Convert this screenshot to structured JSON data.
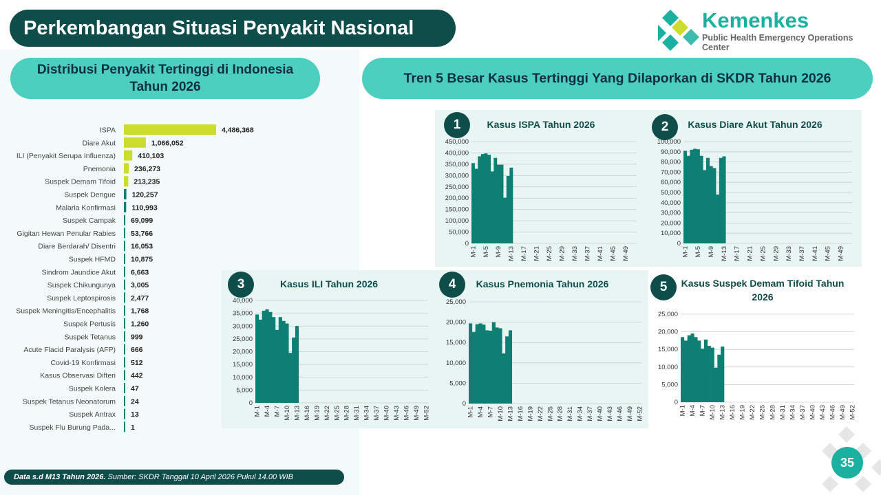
{
  "header": {
    "title": "Perkembangan Situasi Penyakit Nasional",
    "logo_name": "Kemenkes",
    "logo_subtitle": "Public Health Emergency Operations Center"
  },
  "left_section": {
    "title_line1": "Distribusi Penyakit Tertinggi di Indonesia",
    "title_line2": "Tahun 2026"
  },
  "right_section": {
    "title": "Tren 5 Besar Kasus Tertinggi Yang Dilaporkan di SKDR Tahun 2026"
  },
  "footer": {
    "bold_text": "Data s.d M13 Tahun 2026.",
    "text": " Sumber: SKDR Tanggal 10 April 2026 Pukul 14.00 WIB"
  },
  "page_number": "35",
  "colors": {
    "dark_teal": "#0f4d4a",
    "accent_teal": "#4ccfbf",
    "bar_lime": "#cbdc2e",
    "bar_teal": "#0e7f73"
  },
  "chart_data": [
    {
      "type": "bar",
      "orientation": "horizontal",
      "categories": [
        "ISPA",
        "Diare Akut",
        "ILI (Penyakit Serupa Influenza)",
        "Pnemonia",
        "Suspek Demam Tifoid",
        "Suspek Dengue",
        "Malaria Konfirmasi",
        "Suspek Campak",
        "Gigitan Hewan Penular Rabies",
        "Diare Berdarah/ Disentri",
        "Suspek HFMD",
        "Sindrom Jaundice Akut",
        "Suspek Chikungunya",
        "Suspek Leptospirosis",
        "Suspek Meningitis/Encephalitis",
        "Suspek Pertusis",
        "Suspek Tetanus",
        "Acute Flacid Paralysis (AFP)",
        "Covid-19 Konfirmasi",
        "Kasus Observasi Difteri",
        "Suspek Kolera",
        "Suspek Tetanus Neonatorum",
        "Suspek Antrax",
        "Suspek Flu Burung Pada..."
      ],
      "values": [
        4486368,
        1066052,
        410103,
        236273,
        213235,
        120257,
        110993,
        69099,
        53766,
        16053,
        10875,
        6663,
        3005,
        2477,
        1768,
        1260,
        999,
        666,
        512,
        442,
        47,
        24,
        13,
        1
      ],
      "value_labels": [
        "4,486,368",
        "1,066,052",
        "410,103",
        "236,273",
        "213,235",
        "120,257",
        "110,993",
        "69,099",
        "53,766",
        "16,053",
        "10,875",
        "6,663",
        "3,005",
        "2,477",
        "1,768",
        "1,260",
        "999",
        "666",
        "512",
        "442",
        "47",
        "24",
        "13",
        "1"
      ]
    },
    {
      "type": "bar",
      "number": "1",
      "title": "Kasus ISPA Tahun 2026",
      "ylim": [
        0,
        450000
      ],
      "yticks": [
        "0",
        "50,000",
        "100,000",
        "150,000",
        "200,000",
        "250,000",
        "300,000",
        "350,000",
        "400,000",
        "450,000"
      ],
      "xticks": [
        "M-1",
        "M-5",
        "M-9",
        "M-13",
        "M-17",
        "M-21",
        "M-25",
        "M-29",
        "M-33",
        "M-37",
        "M-41",
        "M-45",
        "M-49"
      ],
      "values": [
        355000,
        330000,
        385000,
        395000,
        398000,
        392000,
        318000,
        378000,
        348000,
        348000,
        202000,
        298000,
        335000
      ]
    },
    {
      "type": "bar",
      "number": "2",
      "title": "Kasus Diare Akut Tahun 2026",
      "ylim": [
        0,
        100000
      ],
      "yticks": [
        "0",
        "10,000",
        "20,000",
        "30,000",
        "40,000",
        "50,000",
        "60,000",
        "70,000",
        "80,000",
        "90,000",
        "100,000"
      ],
      "xticks": [
        "M-1",
        "M-5",
        "M-9",
        "M-13",
        "M-17",
        "M-21",
        "M-25",
        "M-29",
        "M-33",
        "M-37",
        "M-41",
        "M-45",
        "M-49"
      ],
      "values": [
        91000,
        86000,
        92000,
        93000,
        92500,
        86000,
        72000,
        84000,
        76000,
        74000,
        48000,
        84000,
        85500
      ]
    },
    {
      "type": "bar",
      "number": "3",
      "title": "Kasus ILI Tahun 2026",
      "ylim": [
        0,
        40000
      ],
      "yticks": [
        "0",
        "5,000",
        "10,000",
        "15,000",
        "20,000",
        "25,000",
        "30,000",
        "35,000",
        "40,000"
      ],
      "xticks": [
        "M-1",
        "M-4",
        "M-7",
        "M-10",
        "M-13",
        "M-16",
        "M-19",
        "M-22",
        "M-25",
        "M-28",
        "M-31",
        "M-34",
        "M-37",
        "M-40",
        "M-43",
        "M-46",
        "M-49",
        "M-52"
      ],
      "values": [
        34500,
        32500,
        36000,
        36500,
        35500,
        33500,
        28500,
        33500,
        32000,
        31000,
        19500,
        25500,
        30000
      ]
    },
    {
      "type": "bar",
      "number": "4",
      "title": "Kasus Pnemonia Tahun 2026",
      "ylim": [
        0,
        25000
      ],
      "yticks": [
        "0",
        "5,000",
        "10,000",
        "15,000",
        "20,000",
        "25,000"
      ],
      "xticks": [
        "M-1",
        "M-4",
        "M-7",
        "M-10",
        "M-13",
        "M-16",
        "M-19",
        "M-22",
        "M-25",
        "M-28",
        "M-31",
        "M-34",
        "M-37",
        "M-40",
        "M-43",
        "M-46",
        "M-49",
        "M-52"
      ],
      "values": [
        19700,
        17600,
        19500,
        19700,
        19400,
        18000,
        17900,
        20000,
        18700,
        18500,
        12300,
        16500,
        18000
      ]
    },
    {
      "type": "bar",
      "number": "5",
      "title": "Kasus Suspek Demam Tifoid Tahun 2026",
      "ylim": [
        0,
        25000
      ],
      "yticks": [
        "0",
        "5,000",
        "10,000",
        "15,000",
        "20,000",
        "25,000"
      ],
      "xticks": [
        "M-1",
        "M-4",
        "M-7",
        "M-10",
        "M-13",
        "M-16",
        "M-19",
        "M-22",
        "M-25",
        "M-28",
        "M-31",
        "M-34",
        "M-37",
        "M-40",
        "M-43",
        "M-46",
        "M-49",
        "M-52"
      ],
      "values": [
        18500,
        17500,
        19000,
        19500,
        18500,
        17500,
        15200,
        17800,
        16000,
        15500,
        9800,
        13500,
        15800
      ]
    }
  ]
}
